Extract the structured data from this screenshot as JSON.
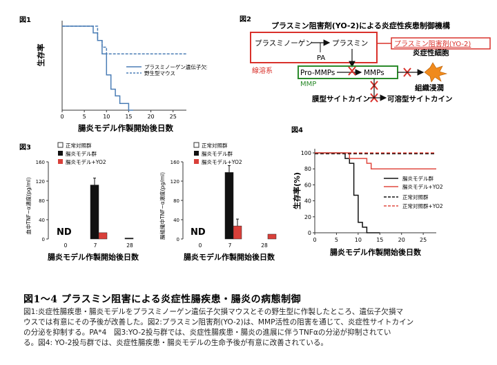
{
  "fig1": {
    "label": "図1",
    "ylabel": "生存率",
    "xlabel": "腸炎モデル作製開始後日数",
    "xticks": [
      "0",
      "5",
      "10",
      "15",
      "20",
      "25"
    ],
    "legend": [
      "プラスミノーゲン遺伝子欠損マウス",
      "野生型マウス"
    ],
    "chart_data": {
      "type": "line",
      "x_range": [
        0,
        28
      ],
      "y_range": [
        0,
        100
      ],
      "series": [
        {
          "name": "プラスミノーゲン遺伝子欠損マウス",
          "color": "#4a7db5",
          "style": "solid",
          "points": [
            [
              0,
              100
            ],
            [
              7,
              100
            ],
            [
              7,
              92
            ],
            [
              8,
              92
            ],
            [
              8,
              83
            ],
            [
              9,
              83
            ],
            [
              9,
              67
            ],
            [
              10,
              67
            ],
            [
              10,
              42
            ],
            [
              11,
              42
            ],
            [
              11,
              25
            ],
            [
              12,
              25
            ],
            [
              12,
              17
            ],
            [
              13,
              17
            ],
            [
              13,
              8
            ],
            [
              15,
              8
            ],
            [
              15,
              0
            ],
            [
              16,
              0
            ]
          ]
        },
        {
          "name": "野生型マウス",
          "color": "#4a7db5",
          "style": "dashed",
          "points": [
            [
              0,
              100
            ],
            [
              8,
              100
            ],
            [
              8,
              83
            ],
            [
              9,
              83
            ],
            [
              9,
              75
            ],
            [
              10,
              75
            ],
            [
              10,
              67
            ],
            [
              28,
              67
            ]
          ]
        }
      ]
    }
  },
  "fig2": {
    "label": "図2",
    "title": "プラスミン阻害剤(YO-2)による炎症性疾患制御機構",
    "plasminogen": "プラスミノーゲン",
    "plasmin": "プラスミン",
    "pa": "PA",
    "inhibitor": "プラスミン阻害剤(YO-2)",
    "fibrinolysis": "線溶系",
    "pro_mmps": "Pro-MMPs",
    "mmps": "MMPs",
    "mmp": "MMP",
    "inflammatory_cell": "炎症性細胞",
    "tissue_infiltration": "組織浸潤",
    "membrane_cytokine": "膜型サイトカイン",
    "soluble_cytokine": "可溶型サイトカイン"
  },
  "fig3": {
    "label": "図3",
    "legend": [
      "正常対照群",
      "腸炎モデル群",
      "腸炎モデル+YO2"
    ],
    "xlabel": "腸炎モデル作製開始後日数",
    "left_ylabel": "血中TNF−α濃度(pg/ml)",
    "right_ylabel": "腸組織中TNF−α濃度(pg/ml)",
    "nd": "ND",
    "yticks": [
      "0",
      "40",
      "80",
      "120",
      "160"
    ],
    "xticks": [
      "0",
      "7",
      "28"
    ],
    "chart_data": [
      {
        "type": "bar",
        "categories": [
          "0",
          "7",
          "28"
        ],
        "ylim": [
          0,
          160
        ],
        "series": [
          {
            "name": "正常対照群",
            "color": "#ffffff",
            "values": [
              0,
              0,
              0
            ]
          },
          {
            "name": "腸炎モデル群",
            "color": "#111111",
            "values": [
              null,
              112,
              2
            ]
          },
          {
            "name": "腸炎モデル+YO2",
            "color": "#d9403a",
            "values": [
              null,
              13,
              null
            ]
          }
        ]
      },
      {
        "type": "bar",
        "categories": [
          "0",
          "7",
          "28"
        ],
        "ylim": [
          0,
          160
        ],
        "series": [
          {
            "name": "正常対照群",
            "color": "#ffffff",
            "values": [
              0,
              0,
              0
            ]
          },
          {
            "name": "腸炎モデル群",
            "color": "#111111",
            "values": [
              null,
              138,
              null
            ]
          },
          {
            "name": "腸炎モデル+YO2",
            "color": "#d9403a",
            "values": [
              null,
              27,
              10
            ]
          }
        ]
      }
    ]
  },
  "fig4": {
    "label": "図4",
    "ylabel": "生存率(%)",
    "xlabel": "腸炎モデル作製開始後日数",
    "yticks": [
      "0",
      "20",
      "40",
      "60",
      "80",
      "100"
    ],
    "xticks": [
      "0",
      "5",
      "10",
      "15",
      "20",
      "25"
    ],
    "legend": [
      "腸炎モデル群",
      "腸炎モデル+YO2",
      "正常対照群",
      "正常対照群+YO2"
    ],
    "chart_data": {
      "type": "line",
      "x_range": [
        0,
        28
      ],
      "y_range": [
        0,
        100
      ],
      "series": [
        {
          "name": "腸炎モデル群",
          "color": "#111111",
          "style": "solid",
          "points": [
            [
              0,
              100
            ],
            [
              7,
              100
            ],
            [
              7,
              93
            ],
            [
              8,
              93
            ],
            [
              8,
              87
            ],
            [
              9,
              87
            ],
            [
              9,
              47
            ],
            [
              10,
              47
            ],
            [
              10,
              13
            ],
            [
              11,
              13
            ],
            [
              11,
              7
            ],
            [
              12,
              7
            ],
            [
              12,
              0
            ],
            [
              15,
              0
            ]
          ]
        },
        {
          "name": "腸炎モデル+YO2",
          "color": "#e0483f",
          "style": "solid",
          "points": [
            [
              0,
              100
            ],
            [
              8,
              100
            ],
            [
              8,
              93
            ],
            [
              12,
              93
            ],
            [
              12,
              87
            ],
            [
              13,
              87
            ],
            [
              13,
              80
            ],
            [
              28,
              80
            ]
          ]
        },
        {
          "name": "正常対照群",
          "color": "#111111",
          "style": "dashed",
          "points": [
            [
              0,
              99
            ],
            [
              28,
              99
            ]
          ]
        },
        {
          "name": "正常対照群+YO2",
          "color": "#e0483f",
          "style": "dashed",
          "points": [
            [
              0,
              100
            ],
            [
              28,
              100
            ]
          ]
        }
      ]
    }
  },
  "caption": {
    "title": "図1～4 プラスミン阻害による炎症性腸疾患・腸炎の病態制御",
    "lines": [
      "図1:炎症性腸疾患・腸炎モデルをプラスミノーゲン遺伝子欠損マウスとその野生型に作製したところ、遺伝子欠損マ",
      "ウスでは有意にその予後が改善した。図2:プラスミン阻害剤(YO-2)は、MMP活性の阻害を通じて、炎症性サイトカイン",
      "の分泌を抑制する。PA*4　図3:YO-2投与群では、炎症性腸疾患・腸炎の進展に伴うTNFαの分泌が抑制されてい",
      "る。図4: YO-2投与群では、炎症性腸疾患・腸炎モデルの生命予後が有意に改善されている。"
    ]
  }
}
